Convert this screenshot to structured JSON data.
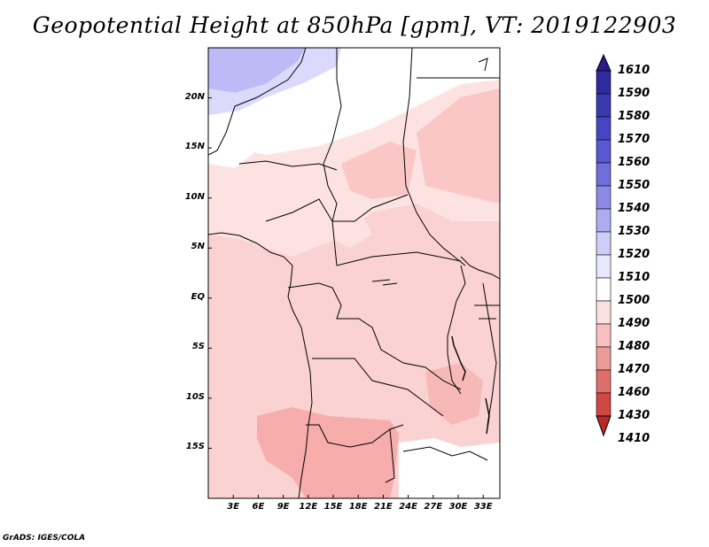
{
  "title": "Geopotential Height at 850hPa [gpm], VT: 2019122903",
  "credit": "GrADS: IGES/COLA",
  "lat_labels": [
    "20N",
    "15N",
    "10N",
    "5N",
    "EQ",
    "5S",
    "10S",
    "15S"
  ],
  "lat_values": [
    20,
    15,
    10,
    5,
    0,
    -5,
    -10,
    -15
  ],
  "lon_labels": [
    "3E",
    "6E",
    "9E",
    "12E",
    "15E",
    "18E",
    "21E",
    "24E",
    "27E",
    "30E",
    "33E"
  ],
  "lon_values": [
    3,
    6,
    9,
    12,
    15,
    18,
    21,
    24,
    27,
    30,
    33
  ],
  "map_extent": {
    "lon_min": 0,
    "lon_max": 35,
    "lat_min": -20,
    "lat_max": 25
  },
  "colorbar": {
    "labels": [
      "1610",
      "1590",
      "1580",
      "1570",
      "1560",
      "1550",
      "1540",
      "1530",
      "1520",
      "1510",
      "1500",
      "1490",
      "1480",
      "1470",
      "1460",
      "1430",
      "1410"
    ],
    "colors": [
      "#2a1a8a",
      "#2f2aa0",
      "#3a3ab0",
      "#4646c4",
      "#5858d2",
      "#6e6edc",
      "#8c8ae6",
      "#aeacf0",
      "#cfcef8",
      "#e8e8fc",
      "#ffffff",
      "#fde0e0",
      "#f8c0c0",
      "#eb9b98",
      "#de6e6a",
      "#cf4642",
      "#b82824"
    ]
  },
  "legend_field_colors": {
    "blue_high": "#bcbaf7",
    "blue_light": "#dcdafc",
    "white": "#ffffff",
    "pink_light": "#fde2e2",
    "pink": "#fac6c6",
    "pink_mid": "#f6adab"
  }
}
